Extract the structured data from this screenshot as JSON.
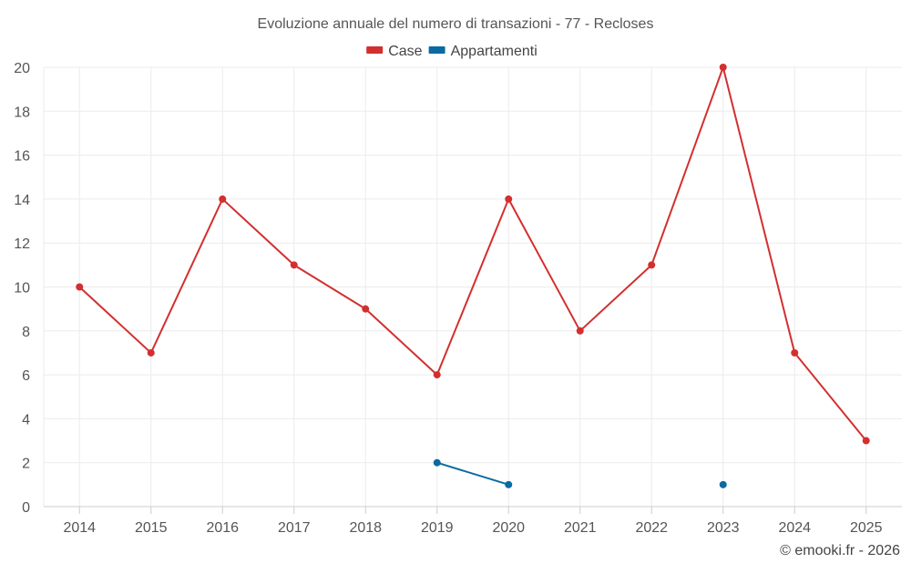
{
  "chart_data": {
    "type": "line",
    "title": "Evoluzione annuale del numero di transazioni - 77 - Recloses",
    "categories": [
      "2014",
      "2015",
      "2016",
      "2017",
      "2018",
      "2019",
      "2020",
      "2021",
      "2022",
      "2023",
      "2024",
      "2025"
    ],
    "ylim": [
      0,
      20
    ],
    "yticks": [
      0,
      2,
      4,
      6,
      8,
      10,
      12,
      14,
      16,
      18,
      20
    ],
    "grid": true,
    "legend_position": "top-center",
    "series": [
      {
        "name": "Case",
        "color": "#d32f2f",
        "values": [
          10,
          7,
          14,
          11,
          9,
          6,
          14,
          8,
          11,
          20,
          7,
          3
        ]
      },
      {
        "name": "Appartamenti",
        "color": "#0b6aa2",
        "values": [
          null,
          null,
          null,
          null,
          null,
          2,
          1,
          null,
          null,
          1,
          null,
          null
        ]
      }
    ],
    "credit": "© emooki.fr - 2026"
  }
}
